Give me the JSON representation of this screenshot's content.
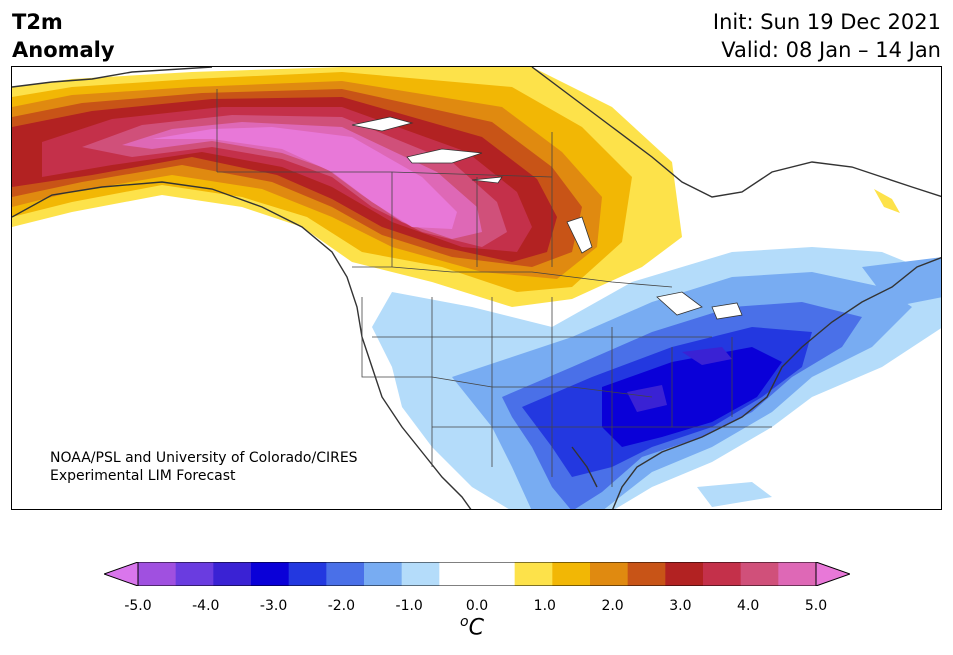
{
  "header": {
    "variable": "T2m",
    "subtitle": "Anomaly",
    "init": "Init: Sun 19 Dec 2021",
    "valid": "Valid: 08 Jan – 14 Jan"
  },
  "map": {
    "credit_line1": "NOAA/PSL and University of Colorado/CIRES",
    "credit_line2": "Experimental LIM Forecast"
  },
  "colorbar": {
    "unit": "C",
    "unit_prefix": "o",
    "ticks": [
      "-5.0",
      "-4.0",
      "-3.0",
      "-2.0",
      "-1.0",
      "0.0",
      "1.0",
      "2.0",
      "3.0",
      "4.0",
      "5.0"
    ],
    "colors": [
      "#d976ec",
      "#a050e0",
      "#6a3ce0",
      "#3a22d4",
      "#0a00d8",
      "#2338e0",
      "#4a70e8",
      "#78acf2",
      "#b4dcfa",
      "#ffffff",
      "#ffffff",
      "#fde24a",
      "#f2b705",
      "#e08a10",
      "#c85417",
      "#b22222",
      "#c4304a",
      "#d0507a",
      "#de68b6",
      "#e878d8"
    ]
  }
}
